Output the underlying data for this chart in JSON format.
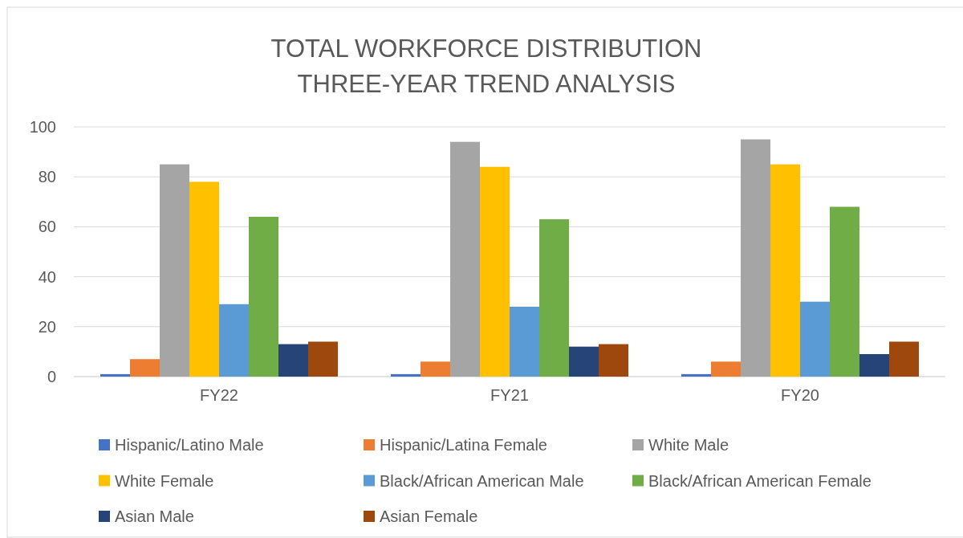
{
  "chart_data": {
    "type": "bar",
    "title": "TOTAL WORKFORCE DISTRIBUTION",
    "subtitle": "THREE-YEAR TREND ANALYSIS",
    "categories": [
      "FY22",
      "FY21",
      "FY20"
    ],
    "series": [
      {
        "name": "Hispanic/Latino Male",
        "color": "#4472c4",
        "values": [
          1,
          1,
          1
        ]
      },
      {
        "name": "Hispanic/Latina Female",
        "color": "#ed7d31",
        "values": [
          7,
          6,
          6
        ]
      },
      {
        "name": "White Male",
        "color": "#a5a5a5",
        "values": [
          85,
          94,
          95
        ]
      },
      {
        "name": "White Female",
        "color": "#ffc000",
        "values": [
          78,
          84,
          85
        ]
      },
      {
        "name": "Black/African American Male",
        "color": "#5b9bd5",
        "values": [
          29,
          28,
          30
        ]
      },
      {
        "name": "Black/African American Female",
        "color": "#70ad47",
        "values": [
          64,
          63,
          68
        ]
      },
      {
        "name": "Asian Male",
        "color": "#264478",
        "values": [
          13,
          12,
          9
        ]
      },
      {
        "name": "Asian Female",
        "color": "#9e480e",
        "values": [
          14,
          13,
          14
        ]
      }
    ],
    "ylim": [
      0,
      100
    ],
    "yticks": [
      0,
      20,
      40,
      60,
      80,
      100
    ],
    "grid": "y",
    "legend": "bottom"
  }
}
